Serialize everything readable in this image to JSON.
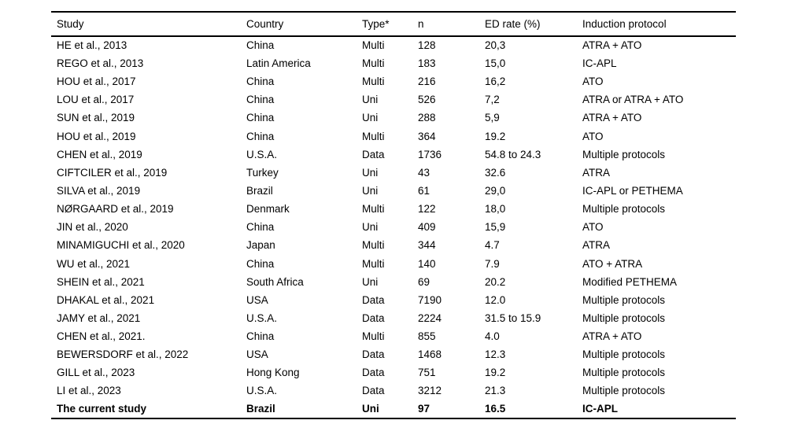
{
  "table": {
    "columns": [
      "Study",
      "Country",
      "Type*",
      "n",
      "ED rate (%)",
      "Induction protocol"
    ],
    "rows": [
      {
        "study": "HE et al., 2013",
        "country": "China",
        "type": "Multi",
        "n": "128",
        "ed_rate": "20,3",
        "protocol": "ATRA + ATO"
      },
      {
        "study": "REGO et al., 2013",
        "country": "Latin America",
        "type": "Multi",
        "n": "183",
        "ed_rate": "15,0",
        "protocol": "IC-APL"
      },
      {
        "study": "HOU et al., 2017",
        "country": "China",
        "type": "Multi",
        "n": "216",
        "ed_rate": "16,2",
        "protocol": "ATO"
      },
      {
        "study": "LOU et al., 2017",
        "country": "China",
        "type": "Uni",
        "n": "526",
        "ed_rate": "7,2",
        "protocol": "ATRA or ATRA + ATO"
      },
      {
        "study": "SUN et al., 2019",
        "country": "China",
        "type": "Uni",
        "n": "288",
        "ed_rate": "5,9",
        "protocol": "ATRA + ATO"
      },
      {
        "study": "HOU et al., 2019",
        "country": "China",
        "type": "Multi",
        "n": "364",
        "ed_rate": "19.2",
        "protocol": "ATO"
      },
      {
        "study": "CHEN et al., 2019",
        "country": "U.S.A.",
        "type": "Data",
        "n": "1736",
        "ed_rate": "54.8 to 24.3",
        "protocol": "Multiple protocols"
      },
      {
        "study": "CIFTCILER et al., 2019",
        "country": "Turkey",
        "type": "Uni",
        "n": "43",
        "ed_rate": "32.6",
        "protocol": "ATRA"
      },
      {
        "study": "SILVA et al., 2019",
        "country": "Brazil",
        "type": "Uni",
        "n": "61",
        "ed_rate": "29,0",
        "protocol": "IC-APL or PETHEMA"
      },
      {
        "study": "NØRGAARD et al., 2019",
        "country": "Denmark",
        "type": "Multi",
        "n": "122",
        "ed_rate": "18,0",
        "protocol": "Multiple protocols"
      },
      {
        "study": "JIN et al., 2020",
        "country": "China",
        "type": "Uni",
        "n": "409",
        "ed_rate": "15,9",
        "protocol": "ATO"
      },
      {
        "study": "MINAMIGUCHI et al., 2020",
        "country": "Japan",
        "type": "Multi",
        "n": "344",
        "ed_rate": "4.7",
        "protocol": "ATRA"
      },
      {
        "study": "WU et al., 2021",
        "country": "China",
        "type": "Multi",
        "n": "140",
        "ed_rate": "7.9",
        "protocol": "ATO + ATRA"
      },
      {
        "study": "SHEIN et al., 2021",
        "country": "South Africa",
        "type": "Uni",
        "n": "69",
        "ed_rate": "20.2",
        "protocol": "Modified PETHEMA"
      },
      {
        "study": "DHAKAL et al., 2021",
        "country": "USA",
        "type": "Data",
        "n": "7190",
        "ed_rate": "12.0",
        "protocol": "Multiple protocols"
      },
      {
        "study": "JAMY et al., 2021",
        "country": "U.S.A.",
        "type": "Data",
        "n": "2224",
        "ed_rate": "31.5 to 15.9",
        "protocol": "Multiple protocols"
      },
      {
        "study": "CHEN et al., 2021.",
        "country": "China",
        "type": "Multi",
        "n": "855",
        "ed_rate": "4.0",
        "protocol": "ATRA + ATO"
      },
      {
        "study": "BEWERSDORF et al., 2022",
        "country": "USA",
        "type": "Data",
        "n": "1468",
        "ed_rate": "12.3",
        "protocol": "Multiple protocols"
      },
      {
        "study": "GILL et al., 2023",
        "country": "Hong Kong",
        "type": "Data",
        "n": "751",
        "ed_rate": "19.2",
        "protocol": "Multiple protocols"
      },
      {
        "study": "LI et al., 2023",
        "country": "U.S.A.",
        "type": "Data",
        "n": "3212",
        "ed_rate": "21.3",
        "protocol": "Multiple protocols"
      },
      {
        "study": "The current study",
        "country": "Brazil",
        "type": "Uni",
        "n": "97",
        "ed_rate": "16.5",
        "protocol": "IC-APL",
        "emphasized": true
      }
    ]
  }
}
